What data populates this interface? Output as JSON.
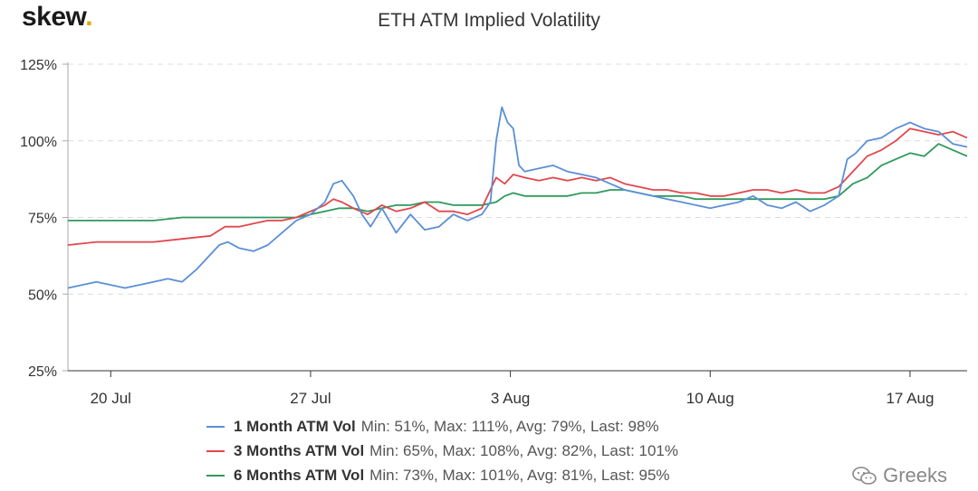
{
  "brand": {
    "name": "skew",
    "dot": "."
  },
  "watermark": {
    "icon": "wechat-icon",
    "text": "Greeks"
  },
  "chart_data": {
    "type": "line",
    "title": "ETH ATM Implied Volatility",
    "xlabel": "",
    "ylabel": "",
    "x_range_days": [
      0,
      31.5
    ],
    "ylim": [
      25,
      125
    ],
    "yticks": [
      {
        "value": 25,
        "label": "25%"
      },
      {
        "value": 50,
        "label": "50%"
      },
      {
        "value": 75,
        "label": "75%"
      },
      {
        "value": 100,
        "label": "100%"
      },
      {
        "value": 125,
        "label": "125%"
      }
    ],
    "xticks": [
      {
        "day": 1.5,
        "label": "20 Jul"
      },
      {
        "day": 8.5,
        "label": "27 Jul"
      },
      {
        "day": 15.5,
        "label": "3 Aug"
      },
      {
        "day": 22.5,
        "label": "10 Aug"
      },
      {
        "day": 29.5,
        "label": "17 Aug"
      }
    ],
    "grid": "horizontal-dashed",
    "legend_position": "bottom",
    "series": [
      {
        "name": "1 Month ATM Vol",
        "stats": "Min: 51%, Max: 111%, Avg: 79%, Last: 98%",
        "color": "#5b8fd6",
        "x": [
          0,
          0.5,
          1,
          1.5,
          2,
          2.5,
          3,
          3.5,
          4,
          4.5,
          5,
          5.3,
          5.6,
          6,
          6.5,
          7,
          7.5,
          8,
          8.5,
          9,
          9.3,
          9.6,
          10,
          10.3,
          10.6,
          11,
          11.5,
          12,
          12.5,
          13,
          13.5,
          14,
          14.5,
          14.8,
          15,
          15.2,
          15.4,
          15.6,
          15.8,
          16,
          16.5,
          17,
          17.5,
          18,
          18.5,
          19,
          19.5,
          20,
          20.5,
          21,
          21.5,
          22,
          22.5,
          23,
          23.5,
          24,
          24.5,
          25,
          25.5,
          26,
          26.5,
          27,
          27.3,
          27.6,
          28,
          28.5,
          29,
          29.5,
          30,
          30.5,
          31,
          31.5
        ],
        "values": [
          52,
          53,
          54,
          53,
          52,
          53,
          54,
          55,
          54,
          58,
          63,
          66,
          67,
          65,
          64,
          66,
          70,
          74,
          76,
          80,
          86,
          87,
          82,
          76,
          72,
          78,
          70,
          76,
          71,
          72,
          76,
          74,
          76,
          80,
          100,
          111,
          106,
          104,
          92,
          90,
          91,
          92,
          90,
          89,
          88,
          86,
          84,
          83,
          82,
          81,
          80,
          79,
          78,
          79,
          80,
          82,
          79,
          78,
          80,
          77,
          79,
          82,
          94,
          96,
          100,
          101,
          104,
          106,
          104,
          103,
          99,
          98
        ]
      },
      {
        "name": "3 Months ATM Vol",
        "stats": "Min: 65%, Max: 108%, Avg: 82%, Last: 101%",
        "color": "#e0474c",
        "x": [
          0,
          1,
          2,
          3,
          4,
          5,
          5.5,
          6,
          6.5,
          7,
          7.5,
          8,
          8.5,
          9,
          9.3,
          9.6,
          10,
          10.5,
          11,
          11.5,
          12,
          12.5,
          13,
          13.5,
          14,
          14.5,
          15,
          15.3,
          15.6,
          16,
          16.5,
          17,
          17.5,
          18,
          18.5,
          19,
          19.5,
          20,
          20.5,
          21,
          21.5,
          22,
          22.5,
          23,
          23.5,
          24,
          24.5,
          25,
          25.5,
          26,
          26.5,
          27,
          27.3,
          27.6,
          28,
          28.5,
          29,
          29.5,
          30,
          30.5,
          31,
          31.5
        ],
        "values": [
          66,
          67,
          67,
          67,
          68,
          69,
          72,
          72,
          73,
          74,
          74,
          75,
          77,
          79,
          81,
          80,
          78,
          76,
          79,
          77,
          78,
          80,
          77,
          77,
          76,
          78,
          88,
          86,
          89,
          88,
          87,
          88,
          87,
          88,
          87,
          88,
          86,
          85,
          84,
          84,
          83,
          83,
          82,
          82,
          83,
          84,
          84,
          83,
          84,
          83,
          83,
          85,
          88,
          91,
          95,
          97,
          100,
          104,
          103,
          102,
          103,
          101
        ]
      },
      {
        "name": "6 Months ATM Vol",
        "stats": "Min: 73%, Max: 101%, Avg: 81%, Last: 95%",
        "color": "#2e9a5c",
        "x": [
          0,
          1,
          2,
          3,
          4,
          5,
          6,
          7,
          8,
          8.5,
          9,
          9.5,
          10,
          10.5,
          11,
          11.5,
          12,
          12.5,
          13,
          13.5,
          14,
          14.5,
          15,
          15.3,
          15.6,
          16,
          16.5,
          17,
          17.5,
          18,
          18.5,
          19,
          19.5,
          20,
          20.5,
          21,
          21.5,
          22,
          22.5,
          23,
          23.5,
          24,
          24.5,
          25,
          25.5,
          26,
          26.5,
          27,
          27.5,
          28,
          28.5,
          29,
          29.5,
          30,
          30.5,
          31,
          31.5
        ],
        "values": [
          74,
          74,
          74,
          74,
          75,
          75,
          75,
          75,
          75,
          76,
          77,
          78,
          78,
          77,
          78,
          79,
          79,
          80,
          80,
          79,
          79,
          79,
          80,
          82,
          83,
          82,
          82,
          82,
          82,
          83,
          83,
          84,
          84,
          83,
          82,
          82,
          82,
          81,
          81,
          81,
          81,
          81,
          81,
          81,
          81,
          81,
          81,
          82,
          86,
          88,
          92,
          94,
          96,
          95,
          99,
          97,
          95
        ]
      }
    ]
  }
}
